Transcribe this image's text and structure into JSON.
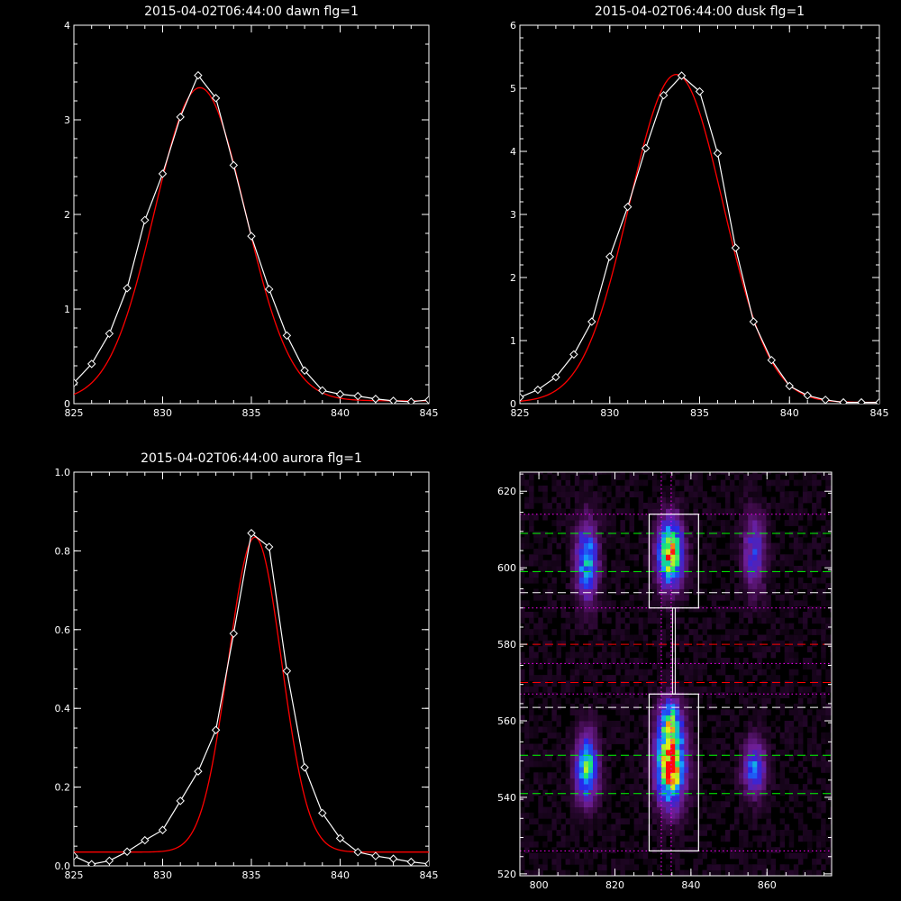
{
  "chart_data": [
    {
      "id": "dawn",
      "type": "line",
      "title": "2015-04-02T06:44:00 dawn flg=1",
      "xlim": [
        825,
        845
      ],
      "ylim": [
        0,
        4
      ],
      "xticks": [
        "825",
        "830",
        "835",
        "840",
        "845"
      ],
      "yticks": [
        "0",
        "1",
        "2",
        "3",
        "4"
      ],
      "series": [
        {
          "kind": "observed",
          "color": "#ffffff",
          "markers": "diamond",
          "x": [
            825,
            826,
            827,
            828,
            829,
            830,
            831,
            832,
            833,
            834,
            835,
            836,
            837,
            838,
            839,
            840,
            841,
            842,
            843,
            844,
            845
          ],
          "y": [
            0.22,
            0.42,
            0.74,
            1.22,
            1.94,
            2.43,
            3.03,
            3.47,
            3.23,
            2.52,
            1.77,
            1.21,
            0.72,
            0.35,
            0.14,
            0.1,
            0.08,
            0.05,
            0.03,
            0.02,
            0.04
          ]
        },
        {
          "kind": "fit",
          "color": "#ff0000",
          "gaussian": {
            "amp": 3.31,
            "mu": 832.1,
            "sigma": 2.55,
            "base": 0.03
          }
        }
      ]
    },
    {
      "id": "dusk",
      "type": "line",
      "title": "2015-04-02T06:44:00 dusk flg=1",
      "xlim": [
        825,
        845
      ],
      "ylim": [
        0,
        6
      ],
      "xticks": [
        "825",
        "830",
        "835",
        "840",
        "845"
      ],
      "yticks": [
        "0",
        "1",
        "2",
        "3",
        "4",
        "5",
        "6"
      ],
      "series": [
        {
          "kind": "observed",
          "color": "#ffffff",
          "markers": "diamond",
          "x": [
            825,
            826,
            827,
            828,
            829,
            830,
            831,
            832,
            833,
            834,
            835,
            836,
            837,
            838,
            839,
            840,
            841,
            842,
            843,
            844,
            845
          ],
          "y": [
            0.1,
            0.22,
            0.42,
            0.78,
            1.3,
            2.33,
            3.12,
            4.05,
            4.89,
            5.2,
            4.95,
            3.97,
            2.47,
            1.3,
            0.69,
            0.28,
            0.13,
            0.06,
            0.02,
            0.02,
            0.02
          ]
        },
        {
          "kind": "fit",
          "color": "#ff0000",
          "gaussian": {
            "amp": 5.2,
            "mu": 833.7,
            "sigma": 2.6,
            "base": 0.02
          }
        }
      ]
    },
    {
      "id": "aurora",
      "type": "line",
      "title": "2015-04-02T06:44:00 aurora flg=1",
      "xlim": [
        825,
        845
      ],
      "ylim": [
        0,
        1
      ],
      "xticks": [
        "825",
        "830",
        "835",
        "840",
        "845"
      ],
      "yticks": [
        "0.0",
        "0.2",
        "0.4",
        "0.6",
        "0.8",
        "1.0"
      ],
      "series": [
        {
          "kind": "observed",
          "color": "#ffffff",
          "markers": "diamond",
          "x": [
            825,
            826,
            827,
            828,
            829,
            830,
            831,
            832,
            833,
            834,
            835,
            836,
            837,
            838,
            839,
            840,
            841,
            842,
            843,
            844,
            845
          ],
          "y": [
            0.025,
            0.004,
            0.013,
            0.036,
            0.065,
            0.091,
            0.165,
            0.24,
            0.345,
            0.59,
            0.845,
            0.81,
            0.495,
            0.25,
            0.134,
            0.07,
            0.035,
            0.025,
            0.018,
            0.01,
            0.005
          ]
        },
        {
          "kind": "fit",
          "color": "#ff0000",
          "gaussian": {
            "amp": 0.8,
            "mu": 835.2,
            "sigma": 1.5,
            "base": 0.035
          }
        }
      ]
    },
    {
      "id": "image",
      "type": "heatmap",
      "xlim": [
        795,
        877
      ],
      "ylim": [
        519.5,
        625
      ],
      "xticks": [
        "800",
        "820",
        "840",
        "860"
      ],
      "yticks": [
        "520",
        "540",
        "560",
        "580",
        "600",
        "620"
      ],
      "blobs": [
        {
          "x": 812,
          "y": 601,
          "sx": 2.0,
          "sy": 7,
          "a": 0.55
        },
        {
          "x": 812,
          "y": 547,
          "sx": 2.0,
          "sy": 6,
          "a": 0.65
        },
        {
          "x": 834,
          "y": 603,
          "sx": 2.3,
          "sy": 6,
          "a": 0.85
        },
        {
          "x": 834,
          "y": 548,
          "sx": 2.6,
          "sy": 7,
          "a": 1.0
        },
        {
          "x": 834,
          "y": 560,
          "sx": 2.0,
          "sy": 4,
          "a": 0.45
        },
        {
          "x": 856,
          "y": 603,
          "sx": 2.0,
          "sy": 7,
          "a": 0.35
        },
        {
          "x": 856,
          "y": 547,
          "sx": 2.0,
          "sy": 5,
          "a": 0.45
        }
      ],
      "hlines": [
        {
          "y": 614,
          "color": "#ff00ff",
          "style": "dotted"
        },
        {
          "y": 609,
          "color": "#00ff00",
          "style": "dashed"
        },
        {
          "y": 599,
          "color": "#00ff00",
          "style": "dashed"
        },
        {
          "y": 593.5,
          "color": "#ffffff",
          "style": "dashed"
        },
        {
          "y": 589.5,
          "color": "#ff00ff",
          "style": "dotted"
        },
        {
          "y": 580,
          "color": "#ff0000",
          "style": "dashed"
        },
        {
          "y": 575,
          "color": "#ff00ff",
          "style": "dotted"
        },
        {
          "y": 570,
          "color": "#ff0000",
          "style": "dashed"
        },
        {
          "y": 567,
          "color": "#ff00ff",
          "style": "dotted"
        },
        {
          "y": 563.5,
          "color": "#ffffff",
          "style": "dashed"
        },
        {
          "y": 551,
          "color": "#00ff00",
          "style": "dashed"
        },
        {
          "y": 541,
          "color": "#00ff00",
          "style": "dashed"
        },
        {
          "y": 526,
          "color": "#ff00ff",
          "style": "dotted"
        }
      ],
      "vlines": [
        {
          "x": 832.2,
          "color": "#ff00ff",
          "style": "dotted"
        },
        {
          "x": 834.8,
          "color": "#ff00ff",
          "style": "dotted"
        }
      ],
      "boxes": [
        {
          "x0": 829,
          "x1": 842,
          "y0": 589.5,
          "y1": 614,
          "color": "#ffffff"
        },
        {
          "x0": 829,
          "x1": 842,
          "y0": 526,
          "y1": 567,
          "color": "#ffffff"
        }
      ],
      "connector": {
        "x": 835.5,
        "y0": 567,
        "y1": 589.5,
        "color": "#ffffff"
      }
    }
  ]
}
